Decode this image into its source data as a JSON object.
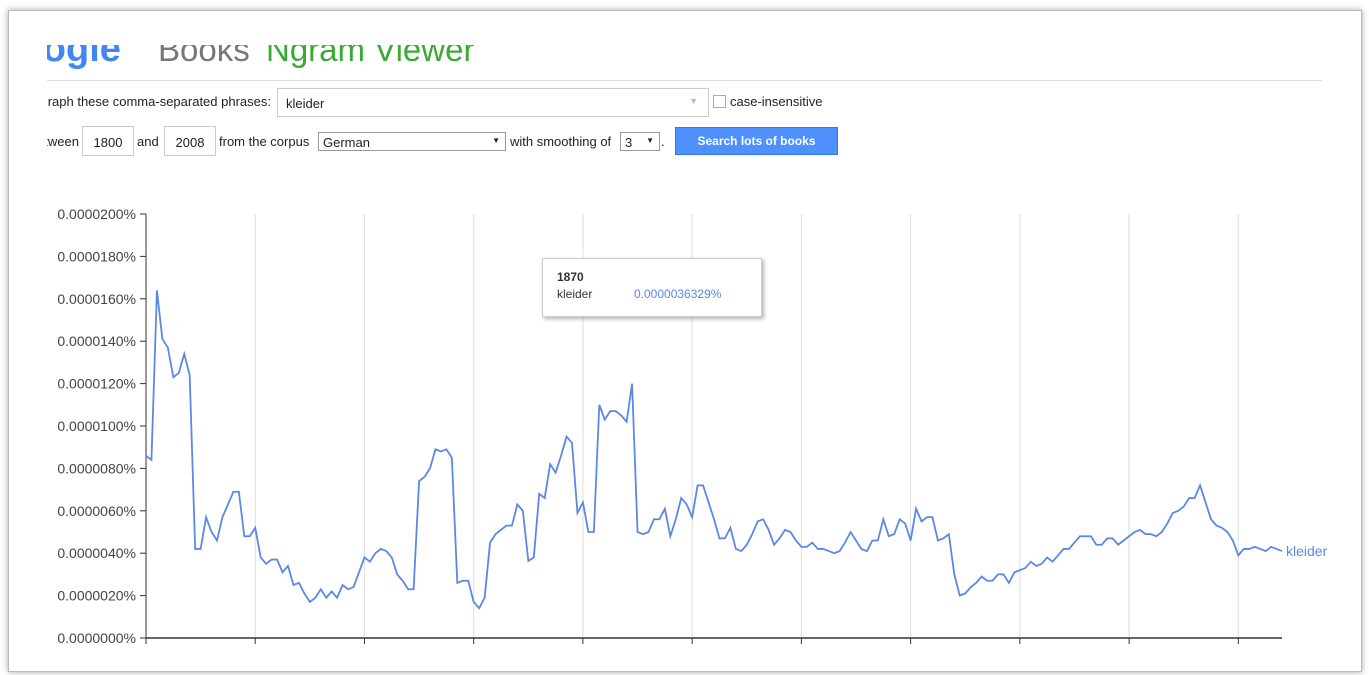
{
  "header": {
    "logo": "Google",
    "books": "Books",
    "title": "Ngram Viewer"
  },
  "form": {
    "phrases_label": "Graph these comma-separated phrases:",
    "phrases_value": "kleider",
    "case_insensitive": "case-insensitive",
    "between": "between",
    "start_year": "1800",
    "and": "and",
    "end_year": "2008",
    "corpus_label": "from the corpus",
    "corpus": "German",
    "smoothing_label": "with smoothing of",
    "smoothing": "3",
    "period": ".",
    "button": "Search lots of books"
  },
  "chart_data": {
    "type": "line",
    "x": [
      1800,
      1801,
      1802,
      1803,
      1804,
      1805,
      1806,
      1807,
      1808,
      1809,
      1810,
      1811,
      1812,
      1813,
      1814,
      1815,
      1816,
      1817,
      1818,
      1819,
      1820,
      1821,
      1822,
      1823,
      1824,
      1825,
      1826,
      1827,
      1828,
      1829,
      1830,
      1831,
      1832,
      1833,
      1834,
      1835,
      1836,
      1837,
      1838,
      1839,
      1840,
      1841,
      1842,
      1843,
      1844,
      1845,
      1846,
      1847,
      1848,
      1849,
      1850,
      1851,
      1852,
      1853,
      1854,
      1855,
      1856,
      1857,
      1858,
      1859,
      1860,
      1861,
      1862,
      1863,
      1864,
      1865,
      1866,
      1867,
      1868,
      1869,
      1870,
      1871,
      1872,
      1873,
      1874,
      1875,
      1876,
      1877,
      1878,
      1879,
      1880,
      1881,
      1882,
      1883,
      1884,
      1885,
      1886,
      1887,
      1888,
      1889,
      1890,
      1891,
      1892,
      1893,
      1894,
      1895,
      1896,
      1897,
      1898,
      1899,
      1900,
      1901,
      1902,
      1903,
      1904,
      1905,
      1906,
      1907,
      1908,
      1909,
      1910,
      1911,
      1912,
      1913,
      1914,
      1915,
      1916,
      1917,
      1918,
      1919,
      1920,
      1921,
      1922,
      1923,
      1924,
      1925,
      1926,
      1927,
      1928,
      1929,
      1930,
      1931,
      1932,
      1933,
      1934,
      1935,
      1936,
      1937,
      1938,
      1939,
      1940,
      1941,
      1942,
      1943,
      1944,
      1945,
      1946,
      1947,
      1948,
      1949,
      1950,
      1951,
      1952,
      1953,
      1954,
      1955,
      1956,
      1957,
      1958,
      1959,
      1960,
      1961,
      1962,
      1963,
      1964,
      1965,
      1966,
      1967,
      1968,
      1969,
      1970,
      1971,
      1972,
      1973,
      1974,
      1975,
      1976,
      1977,
      1978,
      1979,
      1980,
      1981,
      1982,
      1983,
      1984,
      1985,
      1986,
      1987,
      1988,
      1989,
      1990,
      1991,
      1992,
      1993,
      1994,
      1995,
      1996,
      1997,
      1998,
      1999,
      2000,
      2001,
      2002,
      2003,
      2004,
      2005,
      2006,
      2007,
      2008
    ],
    "series": [
      {
        "name": "kleider",
        "color": "#5b87e6",
        "values": [
          8.6e-06,
          8.4e-06,
          1.64e-05,
          1.41e-05,
          1.37e-05,
          1.23e-05,
          1.25e-05,
          1.34e-05,
          1.24e-05,
          4.2e-06,
          4.2e-06,
          5.7e-06,
          5e-06,
          4.6e-06,
          5.7e-06,
          6.3e-06,
          6.9e-06,
          6.9e-06,
          4.8e-06,
          4.8e-06,
          5.2e-06,
          3.8e-06,
          3.5e-06,
          3.7e-06,
          3.7e-06,
          3.1e-06,
          3.4e-06,
          2.5e-06,
          2.6e-06,
          2.1e-06,
          1.7e-06,
          1.9e-06,
          2.3e-06,
          1.9e-06,
          2.2e-06,
          1.9e-06,
          2.5e-06,
          2.3e-06,
          2.4e-06,
          3.1e-06,
          3.8e-06,
          3.6e-06,
          4e-06,
          4.2e-06,
          4.1e-06,
          3.8e-06,
          3e-06,
          2.7e-06,
          2.3e-06,
          2.3e-06,
          7.4e-06,
          7.6e-06,
          8e-06,
          8.9e-06,
          8.8e-06,
          8.9e-06,
          8.5e-06,
          2.6e-06,
          2.7e-06,
          2.7e-06,
          1.7e-06,
          1.4e-06,
          1.9e-06,
          4.5e-06,
          4.9e-06,
          5.1e-06,
          5.3e-06,
          5.3e-06,
          6.3e-06,
          6e-06,
          3.6329e-06,
          3.8e-06,
          6.8e-06,
          6.6e-06,
          8.2e-06,
          7.8e-06,
          8.6e-06,
          9.5e-06,
          9.2e-06,
          5.9e-06,
          6.4e-06,
          5e-06,
          5e-06,
          1.1e-05,
          1.03e-05,
          1.07e-05,
          1.07e-05,
          1.05e-05,
          1.02e-05,
          1.2e-05,
          5e-06,
          4.9e-06,
          5e-06,
          5.6e-06,
          5.6e-06,
          6.1e-06,
          4.8e-06,
          5.6e-06,
          6.6e-06,
          6.3e-06,
          5.7e-06,
          7.2e-06,
          7.2e-06,
          6.4e-06,
          5.6e-06,
          4.7e-06,
          4.7e-06,
          5.2e-06,
          4.2e-06,
          4.1e-06,
          4.4e-06,
          4.9e-06,
          5.5e-06,
          5.6e-06,
          5.1e-06,
          4.4e-06,
          4.7e-06,
          5.1e-06,
          5e-06,
          4.6e-06,
          4.3e-06,
          4.3e-06,
          4.5e-06,
          4.2e-06,
          4.2e-06,
          4.1e-06,
          4e-06,
          4.1e-06,
          4.5e-06,
          5e-06,
          4.6e-06,
          4.2e-06,
          4.1e-06,
          4.6e-06,
          4.6e-06,
          5.6e-06,
          4.8e-06,
          4.9e-06,
          5.6e-06,
          5.4e-06,
          4.6e-06,
          6.1e-06,
          5.5e-06,
          5.7e-06,
          5.7e-06,
          4.6e-06,
          4.7e-06,
          4.9e-06,
          3e-06,
          2e-06,
          2.1e-06,
          2.4e-06,
          2.6e-06,
          2.9e-06,
          2.7e-06,
          2.7e-06,
          3e-06,
          3e-06,
          2.6e-06,
          3.1e-06,
          3.2e-06,
          3.3e-06,
          3.6e-06,
          3.4e-06,
          3.5e-06,
          3.8e-06,
          3.6e-06,
          3.9e-06,
          4.2e-06,
          4.2e-06,
          4.5e-06,
          4.8e-06,
          4.8e-06,
          4.8e-06,
          4.4e-06,
          4.4e-06,
          4.7e-06,
          4.7e-06,
          4.4e-06,
          4.6e-06,
          4.8e-06,
          5e-06,
          5.1e-06,
          4.9e-06,
          4.9e-06,
          4.8e-06,
          5e-06,
          5.4e-06,
          5.9e-06,
          6e-06,
          6.2e-06,
          6.6e-06,
          6.6e-06,
          7.2e-06,
          6.4e-06,
          5.6e-06,
          5.3e-06,
          5.2e-06,
          5e-06,
          4.6e-06,
          3.9e-06,
          4.2e-06,
          4.2e-06,
          4.3e-06,
          4.2e-06,
          4.1e-06,
          4.3e-06,
          4.2e-06,
          4.1e-06
        ]
      }
    ],
    "xlim": [
      1800,
      2008
    ],
    "xticks": [
      1800,
      1820,
      1840,
      1860,
      1880,
      1900,
      1920,
      1940,
      1960,
      1980,
      2000
    ],
    "ylim": [
      0,
      2e-05
    ],
    "yticks": [
      {
        "value": 0,
        "label": "0.0000000%"
      },
      {
        "value": 2e-06,
        "label": "0.0000020%"
      },
      {
        "value": 4e-06,
        "label": "0.0000040%"
      },
      {
        "value": 6e-06,
        "label": "0.0000060%"
      },
      {
        "value": 8e-06,
        "label": "0.0000080%"
      },
      {
        "value": 1e-05,
        "label": "0.0000100%"
      },
      {
        "value": 1.2e-05,
        "label": "0.0000120%"
      },
      {
        "value": 1.4e-05,
        "label": "0.0000140%"
      },
      {
        "value": 1.6e-05,
        "label": "0.0000160%"
      },
      {
        "value": 1.8e-05,
        "label": "0.0000180%"
      },
      {
        "value": 2e-05,
        "label": "0.0000200%"
      }
    ],
    "grid": "x",
    "tooltip": {
      "title": "1870",
      "name": "kleider",
      "value_label": "0.0000036329%"
    }
  }
}
